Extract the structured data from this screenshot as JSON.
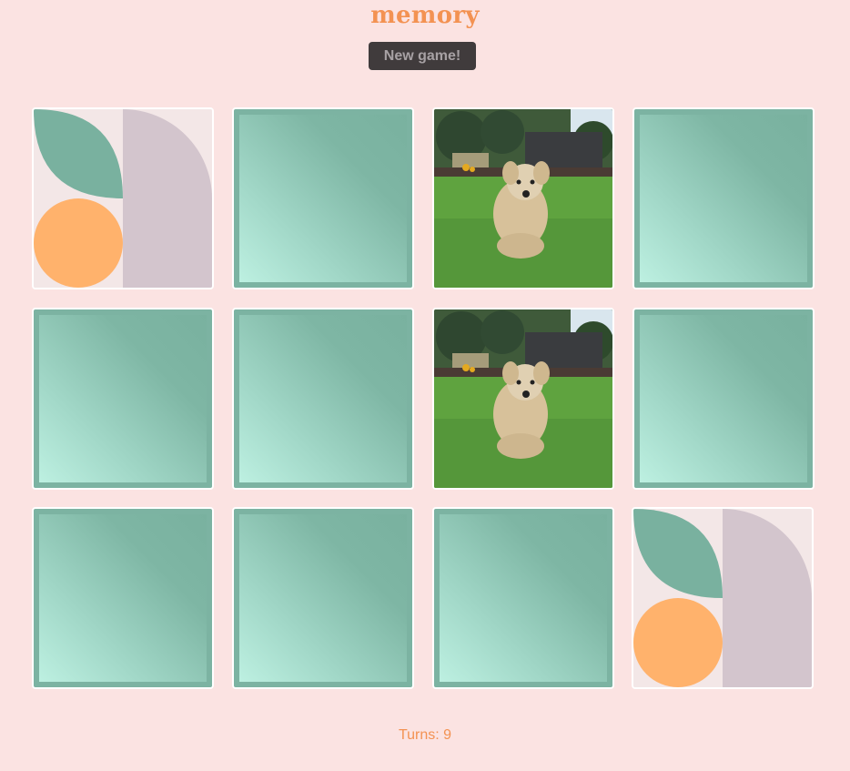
{
  "app": {
    "title": "memory",
    "new_game_label": "New game!",
    "turns_text": "Turns: 9"
  },
  "colors": {
    "background": "#fbe3e2",
    "accent": "#f39252",
    "card_back": "#7cb3a2",
    "button_bg": "#403b3c"
  },
  "cards": [
    {
      "state": "face-up",
      "image": "abstract-leaf-circle-icon"
    },
    {
      "state": "face-down"
    },
    {
      "state": "face-up",
      "image": "dog-photo"
    },
    {
      "state": "face-down"
    },
    {
      "state": "face-down"
    },
    {
      "state": "face-down"
    },
    {
      "state": "face-up",
      "image": "dog-photo"
    },
    {
      "state": "face-down"
    },
    {
      "state": "face-down"
    },
    {
      "state": "face-down"
    },
    {
      "state": "face-down"
    },
    {
      "state": "face-up",
      "image": "abstract-leaf-circle-icon"
    }
  ]
}
